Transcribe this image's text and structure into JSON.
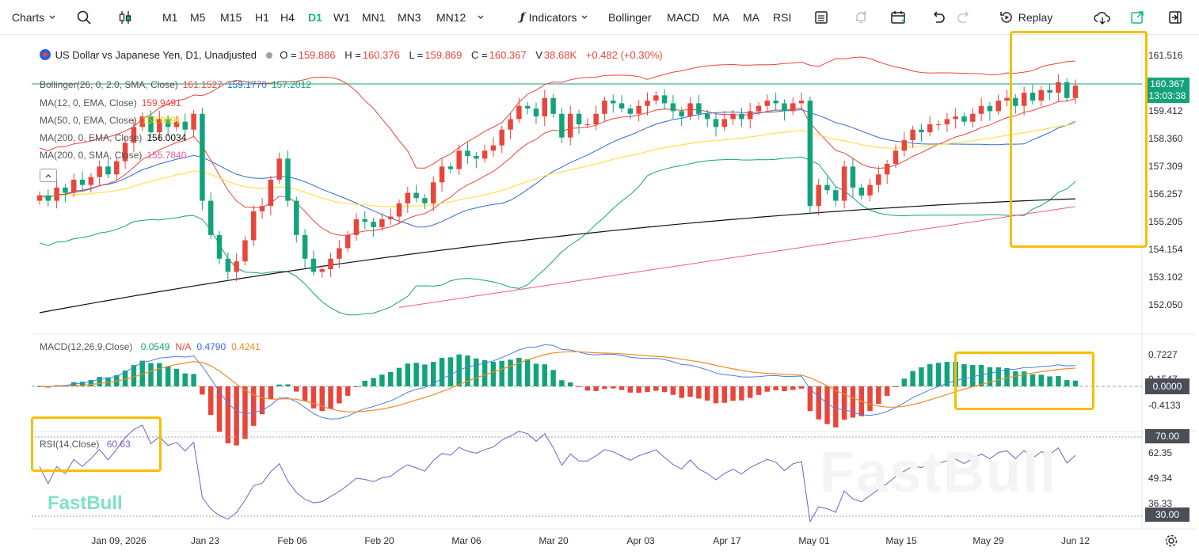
{
  "toolbar": {
    "charts_label": "Charts",
    "timeframes": [
      "M1",
      "M5",
      "M15",
      "H1",
      "H4",
      "D1",
      "W1",
      "MN1",
      "MN3",
      "MN12"
    ],
    "active_timeframe": "D1",
    "indicators_label": "Indicators",
    "quick_indicators": [
      "Bollinger",
      "MACD",
      "MA",
      "MA",
      "RSI"
    ],
    "replay_label": "Replay"
  },
  "main": {
    "symbol_title": "US Dollar vs Japanese Yen, D1, Unadjusted",
    "ohlc": {
      "o_label": "O =",
      "o": "159.886",
      "h_label": "H =",
      "h": "160.376",
      "l_label": "L =",
      "l": "159.869",
      "c_label": "C =",
      "c": "160.367",
      "v_label": "V",
      "v": "38.68K",
      "change": "+0.482 (+0.30%)"
    },
    "indicators": [
      {
        "label": "Bollinger(26, 0, 2.0, SMA, Close)",
        "values": [
          "161.1527",
          "159.1770",
          "157.2012"
        ],
        "colors": [
          "#e8463c",
          "#2e6bd8",
          "#13a37a"
        ]
      },
      {
        "label": "MA(12, 0, EMA, Close)",
        "values": [
          "159.9491"
        ],
        "colors": [
          "#e8463c"
        ]
      },
      {
        "label": "MA(50, 0, EMA, Close)",
        "values": [
          "158.0891"
        ],
        "colors": [
          "#e8d200"
        ]
      },
      {
        "label": "MA(200, 0, EMA, Close)",
        "values": [
          "156.0034"
        ],
        "colors": [
          "#111111"
        ]
      },
      {
        "label": "MA(200, 0, SMA, Close)",
        "values": [
          "155.7840"
        ],
        "colors": [
          "#e85a9a"
        ]
      }
    ],
    "price_axis": [
      "161.516",
      "159.412",
      "158.360",
      "157.309",
      "156.257",
      "155.205",
      "154.154",
      "153.102",
      "152.050"
    ],
    "last_price": "160.367",
    "countdown": "13:03:38"
  },
  "macd": {
    "label": "MACD(12,26,9,Close)",
    "values": [
      "0.0549",
      "N/A",
      "0.4790",
      "0.4241"
    ],
    "colors": [
      "#13a37a",
      "#e8463c",
      "#2e6bd8",
      "#f08a24"
    ],
    "axis": [
      "0.7227",
      "0.1547",
      "-0.4133"
    ],
    "current": "0.0000"
  },
  "rsi": {
    "label": "RSI(14,Close)",
    "value": "60.63",
    "axis": [
      "62.35",
      "49.34",
      "36.33"
    ],
    "upper": "70.00",
    "lower": "30.00"
  },
  "time_axis": [
    "Jan 09, 2026",
    "Jan 23",
    "Feb 06",
    "Feb 20",
    "Mar 06",
    "Mar 20",
    "Apr 03",
    "Apr 17",
    "May 01",
    "May 15",
    "May 29",
    "Jun 12"
  ],
  "watermark": "FastBull",
  "logo": "FastBull",
  "chart_data": {
    "type": "candlestick",
    "dates_start": "Dec 29, 2025",
    "closes": [
      156.2,
      156.0,
      156.5,
      156.3,
      156.8,
      156.6,
      156.9,
      157.3,
      157.0,
      157.5,
      158.2,
      158.8,
      159.2,
      158.6,
      159.1,
      158.8,
      159.0,
      158.7,
      159.3,
      156.0,
      154.7,
      153.8,
      153.3,
      153.7,
      154.5,
      155.6,
      155.8,
      156.8,
      157.6,
      156.0,
      154.7,
      153.8,
      153.3,
      153.4,
      153.8,
      154.2,
      154.7,
      155.3,
      155.2,
      155.0,
      155.3,
      155.4,
      155.9,
      156.3,
      156.1,
      155.9,
      156.7,
      157.3,
      157.2,
      157.9,
      157.7,
      157.6,
      157.9,
      158.1,
      158.7,
      159.1,
      159.6,
      159.5,
      159.2,
      159.9,
      159.3,
      158.4,
      159.3,
      158.9,
      158.9,
      159.3,
      159.8,
      159.7,
      159.5,
      159.3,
      159.6,
      159.8,
      160.0,
      159.7,
      159.4,
      159.2,
      159.7,
      159.3,
      159.1,
      158.8,
      159.1,
      159.3,
      159.1,
      159.4,
      159.6,
      159.8,
      159.7,
      159.4,
      159.7,
      159.8,
      155.8,
      156.6,
      156.4,
      156.0,
      157.3,
      156.5,
      156.2,
      156.6,
      157.0,
      157.4,
      157.9,
      158.3,
      158.7,
      158.6,
      158.9,
      158.9,
      159.1,
      159.2,
      159.0,
      159.3,
      159.6,
      159.4,
      159.8,
      159.9,
      159.6,
      160.1,
      159.8,
      160.2,
      160.1,
      160.5,
      159.9,
      160.37
    ]
  }
}
